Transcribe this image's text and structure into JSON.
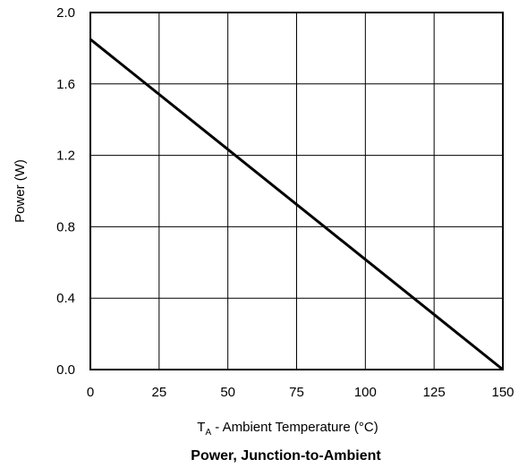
{
  "chart_data": {
    "type": "line",
    "title": "Power, Junction-to-Ambient",
    "xlabel": {
      "prefix": "T",
      "subscript": "A",
      "rest": " - Ambient Temperature (°C)"
    },
    "ylabel": "Power (W)",
    "xlim": [
      0,
      150
    ],
    "ylim": [
      0,
      2.0
    ],
    "x_ticks": [
      0,
      25,
      50,
      75,
      100,
      125,
      150
    ],
    "x_tick_labels": [
      "0",
      "25",
      "50",
      "75",
      "100",
      "125",
      "150"
    ],
    "y_ticks": [
      0,
      0.4,
      0.8,
      1.2,
      1.6,
      2.0
    ],
    "y_tick_labels": [
      "0.0",
      "0.4",
      "0.8",
      "1.2",
      "1.6",
      "2.0"
    ],
    "grid": true,
    "series": [
      {
        "x": [
          0,
          150
        ],
        "y": [
          1.85,
          0.0
        ],
        "color": "#000000"
      }
    ]
  }
}
